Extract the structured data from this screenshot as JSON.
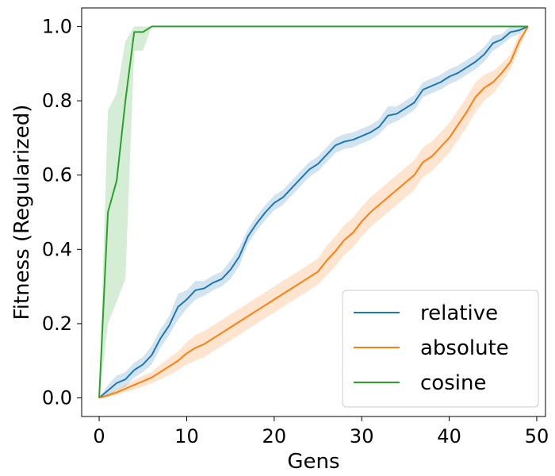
{
  "chart_data": {
    "type": "line",
    "xlabel": "Gens",
    "ylabel": "Fitness (Regularized)",
    "xlim": [
      -2,
      51
    ],
    "ylim": [
      -0.05,
      1.05
    ],
    "xticks": [
      0,
      10,
      20,
      30,
      40,
      50
    ],
    "yticks": [
      0.0,
      0.2,
      0.4,
      0.6,
      0.8,
      1.0
    ],
    "xtick_labels": [
      "0",
      "10",
      "20",
      "30",
      "40",
      "50"
    ],
    "ytick_labels": [
      "0.0",
      "0.2",
      "0.4",
      "0.6",
      "0.8",
      "1.0"
    ],
    "grid": false,
    "legend_position": "lower-right",
    "x": [
      0,
      1,
      2,
      3,
      4,
      5,
      6,
      7,
      8,
      9,
      10,
      11,
      12,
      13,
      14,
      15,
      16,
      17,
      18,
      19,
      20,
      21,
      22,
      23,
      24,
      25,
      26,
      27,
      28,
      29,
      30,
      31,
      32,
      33,
      34,
      35,
      36,
      37,
      38,
      39,
      40,
      41,
      42,
      43,
      44,
      45,
      46,
      47,
      48,
      49
    ],
    "series": [
      {
        "name": "relative",
        "color": "#1f77b4",
        "values": [
          0.0,
          0.02,
          0.04,
          0.05,
          0.075,
          0.09,
          0.115,
          0.16,
          0.195,
          0.245,
          0.265,
          0.29,
          0.295,
          0.31,
          0.32,
          0.345,
          0.38,
          0.435,
          0.47,
          0.5,
          0.525,
          0.54,
          0.565,
          0.59,
          0.615,
          0.63,
          0.655,
          0.68,
          0.69,
          0.695,
          0.705,
          0.715,
          0.73,
          0.76,
          0.765,
          0.78,
          0.795,
          0.83,
          0.84,
          0.85,
          0.865,
          0.875,
          0.89,
          0.905,
          0.925,
          0.955,
          0.965,
          0.985,
          0.99,
          1.0
        ],
        "lower": [
          0.0,
          0.005,
          0.02,
          0.03,
          0.055,
          0.07,
          0.09,
          0.135,
          0.17,
          0.21,
          0.24,
          0.265,
          0.275,
          0.29,
          0.3,
          0.32,
          0.355,
          0.415,
          0.45,
          0.48,
          0.505,
          0.52,
          0.545,
          0.57,
          0.595,
          0.61,
          0.635,
          0.66,
          0.67,
          0.675,
          0.685,
          0.695,
          0.71,
          0.735,
          0.745,
          0.76,
          0.775,
          0.81,
          0.82,
          0.83,
          0.845,
          0.855,
          0.87,
          0.885,
          0.905,
          0.935,
          0.95,
          0.97,
          0.98,
          1.0
        ],
        "upper": [
          0.0,
          0.035,
          0.06,
          0.07,
          0.095,
          0.11,
          0.14,
          0.185,
          0.22,
          0.28,
          0.29,
          0.315,
          0.315,
          0.33,
          0.34,
          0.37,
          0.405,
          0.455,
          0.49,
          0.52,
          0.545,
          0.56,
          0.585,
          0.61,
          0.635,
          0.65,
          0.675,
          0.7,
          0.71,
          0.715,
          0.725,
          0.735,
          0.75,
          0.785,
          0.785,
          0.8,
          0.815,
          0.85,
          0.86,
          0.87,
          0.885,
          0.895,
          0.91,
          0.925,
          0.945,
          0.975,
          0.98,
          1.0,
          1.0,
          1.0
        ]
      },
      {
        "name": "absolute",
        "color": "#ff7f0e",
        "values": [
          0.0,
          0.007,
          0.015,
          0.025,
          0.035,
          0.045,
          0.055,
          0.07,
          0.085,
          0.1,
          0.12,
          0.135,
          0.145,
          0.16,
          0.175,
          0.19,
          0.205,
          0.22,
          0.235,
          0.25,
          0.265,
          0.28,
          0.295,
          0.31,
          0.325,
          0.34,
          0.37,
          0.395,
          0.425,
          0.445,
          0.475,
          0.5,
          0.52,
          0.54,
          0.56,
          0.58,
          0.6,
          0.635,
          0.65,
          0.675,
          0.7,
          0.735,
          0.77,
          0.81,
          0.835,
          0.85,
          0.875,
          0.905,
          0.96,
          1.0
        ],
        "lower": [
          0.0,
          0.002,
          0.008,
          0.015,
          0.022,
          0.03,
          0.04,
          0.05,
          0.062,
          0.075,
          0.09,
          0.1,
          0.11,
          0.125,
          0.14,
          0.155,
          0.17,
          0.185,
          0.2,
          0.215,
          0.23,
          0.245,
          0.26,
          0.275,
          0.29,
          0.305,
          0.33,
          0.355,
          0.385,
          0.405,
          0.435,
          0.46,
          0.48,
          0.5,
          0.52,
          0.54,
          0.56,
          0.595,
          0.61,
          0.635,
          0.66,
          0.695,
          0.73,
          0.77,
          0.8,
          0.82,
          0.85,
          0.885,
          0.94,
          1.0
        ],
        "upper": [
          0.0,
          0.012,
          0.022,
          0.035,
          0.048,
          0.06,
          0.07,
          0.09,
          0.108,
          0.125,
          0.15,
          0.17,
          0.18,
          0.195,
          0.21,
          0.225,
          0.24,
          0.255,
          0.27,
          0.285,
          0.3,
          0.315,
          0.33,
          0.345,
          0.36,
          0.375,
          0.41,
          0.435,
          0.465,
          0.485,
          0.515,
          0.54,
          0.56,
          0.58,
          0.6,
          0.62,
          0.64,
          0.675,
          0.69,
          0.715,
          0.74,
          0.775,
          0.81,
          0.85,
          0.87,
          0.88,
          0.9,
          0.925,
          0.98,
          1.0
        ]
      },
      {
        "name": "cosine",
        "color": "#2ca02c",
        "values": [
          0.0,
          0.5,
          0.585,
          0.8,
          0.985,
          0.985,
          1.0,
          1.0,
          1.0,
          1.0,
          1.0,
          1.0,
          1.0,
          1.0,
          1.0,
          1.0,
          1.0,
          1.0,
          1.0,
          1.0,
          1.0,
          1.0,
          1.0,
          1.0,
          1.0,
          1.0,
          1.0,
          1.0,
          1.0,
          1.0,
          1.0,
          1.0,
          1.0,
          1.0,
          1.0,
          1.0,
          1.0,
          1.0,
          1.0,
          1.0,
          1.0,
          1.0,
          1.0,
          1.0,
          1.0,
          1.0,
          1.0,
          1.0,
          1.0,
          1.0
        ],
        "lower": [
          0.0,
          0.2,
          0.26,
          0.32,
          0.935,
          0.935,
          1.0,
          1.0,
          1.0,
          1.0,
          1.0,
          1.0,
          1.0,
          1.0,
          1.0,
          1.0,
          1.0,
          1.0,
          1.0,
          1.0,
          1.0,
          1.0,
          1.0,
          1.0,
          1.0,
          1.0,
          1.0,
          1.0,
          1.0,
          1.0,
          1.0,
          1.0,
          1.0,
          1.0,
          1.0,
          1.0,
          1.0,
          1.0,
          1.0,
          1.0,
          1.0,
          1.0,
          1.0,
          1.0,
          1.0,
          1.0,
          1.0,
          1.0,
          1.0,
          1.0
        ],
        "upper": [
          0.0,
          0.775,
          0.82,
          0.96,
          1.0,
          1.0,
          1.0,
          1.0,
          1.0,
          1.0,
          1.0,
          1.0,
          1.0,
          1.0,
          1.0,
          1.0,
          1.0,
          1.0,
          1.0,
          1.0,
          1.0,
          1.0,
          1.0,
          1.0,
          1.0,
          1.0,
          1.0,
          1.0,
          1.0,
          1.0,
          1.0,
          1.0,
          1.0,
          1.0,
          1.0,
          1.0,
          1.0,
          1.0,
          1.0,
          1.0,
          1.0,
          1.0,
          1.0,
          1.0,
          1.0,
          1.0,
          1.0,
          1.0,
          1.0,
          1.0
        ]
      }
    ]
  }
}
